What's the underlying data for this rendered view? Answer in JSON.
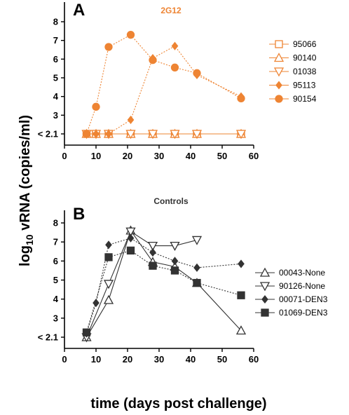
{
  "ylabel_main": "log",
  "ylabel_sub": "10",
  "ylabel_rest": " vRNA (copies/ml)",
  "xlabel": "time (days post challenge)",
  "chart_data": [
    {
      "type": "line",
      "panel": "A",
      "title": "2G12",
      "title_color": "#ee8433",
      "x_ticks": [
        0,
        10,
        20,
        30,
        40,
        50,
        60
      ],
      "y_ticks": [
        "< 2.1",
        "3",
        "4",
        "5",
        "6",
        "7",
        "8"
      ],
      "xlim": [
        0,
        60
      ],
      "ylim": [
        2.1,
        8
      ],
      "series": [
        {
          "name": "95066",
          "marker": "square-open",
          "color": "#ee8433",
          "line": "solid",
          "x": [
            7,
            10,
            14,
            21,
            28,
            35,
            42,
            56
          ],
          "y": [
            2.1,
            2.1,
            2.1,
            2.1,
            2.1,
            2.1,
            2.1,
            2.1
          ]
        },
        {
          "name": "90140",
          "marker": "triangle-up-open",
          "color": "#ee8433",
          "line": "solid",
          "x": [
            7,
            10,
            14,
            21,
            28,
            35,
            42,
            56
          ],
          "y": [
            2.1,
            2.1,
            2.1,
            2.1,
            2.1,
            2.1,
            2.1,
            2.1
          ]
        },
        {
          "name": "01038",
          "marker": "triangle-down-open",
          "color": "#ee8433",
          "line": "solid",
          "x": [
            7,
            10,
            14,
            21,
            28,
            35,
            42,
            56
          ],
          "y": [
            2.1,
            2.1,
            2.1,
            2.1,
            2.1,
            2.1,
            2.1,
            2.1
          ]
        },
        {
          "name": "95113",
          "marker": "diamond",
          "color": "#ee8433",
          "line": "dotted",
          "x": [
            7,
            10,
            14,
            21,
            28,
            35,
            42,
            56
          ],
          "y": [
            2.1,
            2.1,
            2.1,
            2.75,
            6.05,
            6.7,
            5.15,
            4.0
          ]
        },
        {
          "name": "90154",
          "marker": "circle",
          "color": "#ee8433",
          "line": "dotted",
          "x": [
            7,
            10,
            14,
            21,
            28,
            35,
            42,
            56
          ],
          "y": [
            2.1,
            3.45,
            6.65,
            7.3,
            5.95,
            5.55,
            5.25,
            3.9
          ]
        }
      ]
    },
    {
      "type": "line",
      "panel": "B",
      "title": "Controls",
      "title_color": "#333333",
      "x_ticks": [
        0,
        10,
        20,
        30,
        40,
        50,
        60
      ],
      "y_ticks": [
        "< 2.1",
        "3",
        "4",
        "5",
        "6",
        "7",
        "8"
      ],
      "xlim": [
        0,
        60
      ],
      "ylim": [
        2.1,
        8
      ],
      "series": [
        {
          "name": "00043-None",
          "marker": "triangle-up-open",
          "color": "#333333",
          "line": "solid",
          "x": [
            7,
            14,
            21,
            28,
            35,
            42,
            56
          ],
          "y": [
            2.1,
            3.95,
            7.6,
            5.95,
            5.7,
            4.85,
            2.35
          ]
        },
        {
          "name": "90126-None",
          "marker": "triangle-down-open",
          "color": "#333333",
          "line": "solid",
          "x": [
            7,
            14,
            21,
            28,
            35,
            42
          ],
          "y": [
            2.1,
            4.8,
            7.55,
            6.8,
            6.8,
            7.1
          ]
        },
        {
          "name": "00071-DEN3",
          "marker": "diamond",
          "color": "#333333",
          "line": "dotted",
          "x": [
            7,
            10,
            14,
            21,
            28,
            35,
            42,
            56
          ],
          "y": [
            2.2,
            3.8,
            6.85,
            7.2,
            6.45,
            6.0,
            5.65,
            5.85
          ]
        },
        {
          "name": "01069-DEN3",
          "marker": "square",
          "color": "#333333",
          "line": "dotted",
          "x": [
            7,
            14,
            21,
            28,
            35,
            42,
            56
          ],
          "y": [
            2.25,
            6.2,
            6.55,
            5.75,
            5.5,
            4.85,
            4.2
          ]
        }
      ]
    }
  ]
}
